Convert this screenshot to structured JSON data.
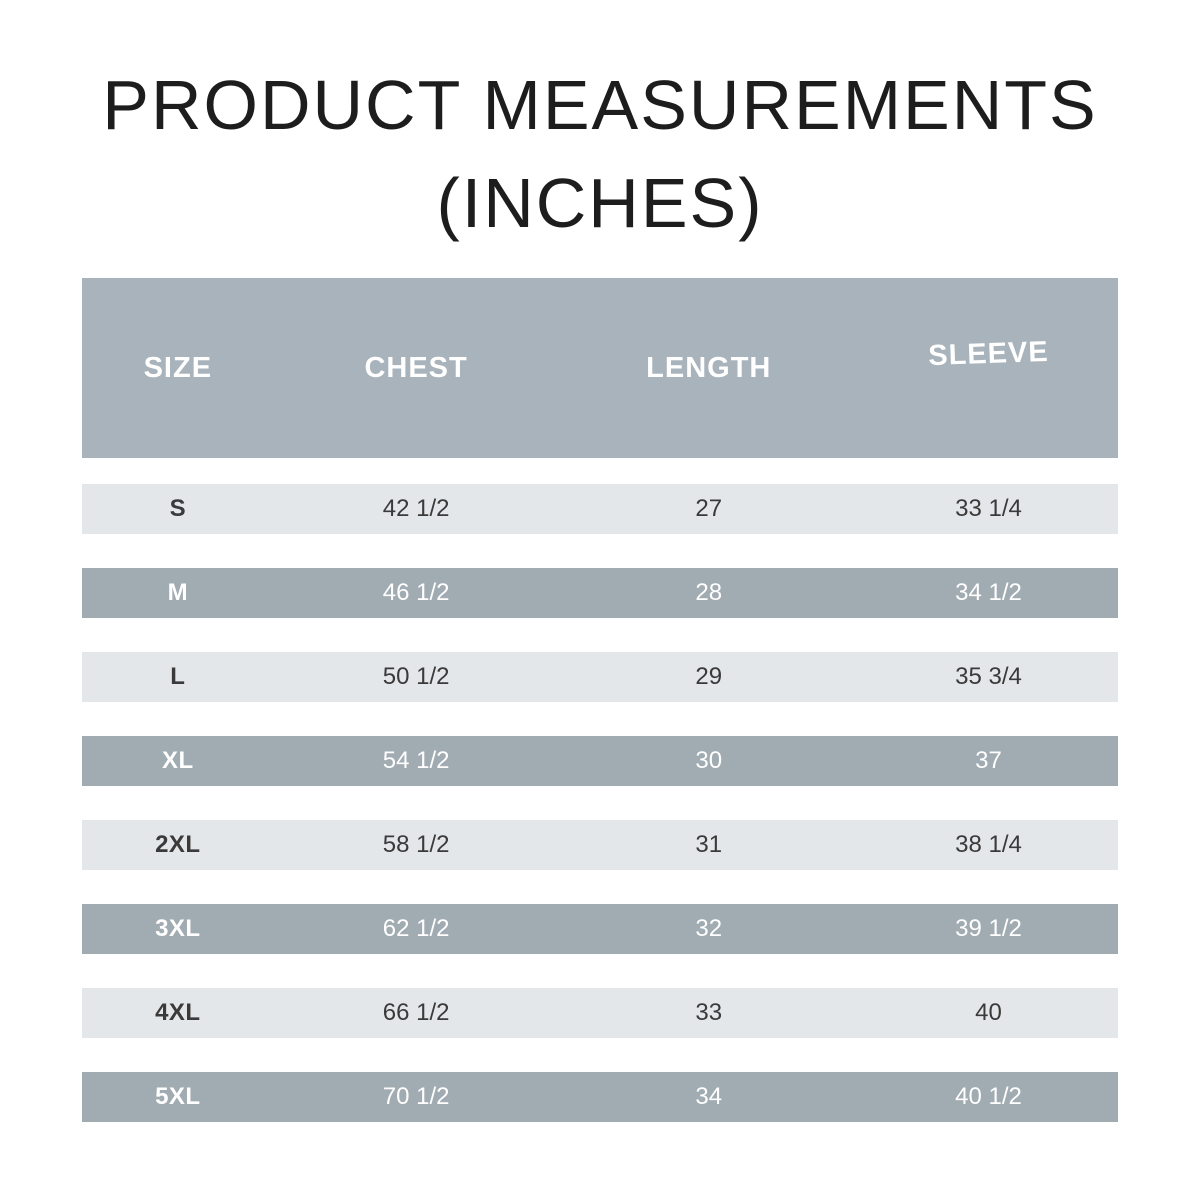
{
  "title": {
    "line1": "PRODUCT MEASUREMENTS",
    "line2": "(INCHES)"
  },
  "colors": {
    "header_bg": "#a8b3bb",
    "dark_row_bg": "#a1abb2",
    "light_row_bg": "#e4e7e9",
    "header_text": "#ffffff",
    "dark_text": "#3a3a3a",
    "title_text": "#1d1d1d",
    "page_bg": "#ffffff"
  },
  "chart_data": {
    "type": "table",
    "title": "PRODUCT MEASUREMENTS (INCHES)",
    "columns": [
      "SIZE",
      "CHEST",
      "LENGTH",
      "SLEEVE"
    ],
    "rows": [
      [
        "S",
        "42 1/2",
        "27",
        "33 1/4"
      ],
      [
        "M",
        "46 1/2",
        "28",
        "34 1/2"
      ],
      [
        "L",
        "50 1/2",
        "29",
        "35 3/4"
      ],
      [
        "XL",
        "54 1/2",
        "30",
        "37"
      ],
      [
        "2XL",
        "58 1/2",
        "31",
        "38 1/4"
      ],
      [
        "3XL",
        "62 1/2",
        "32",
        "39 1/2"
      ],
      [
        "4XL",
        "66 1/2",
        "33",
        "40"
      ],
      [
        "5XL",
        "70 1/2",
        "34",
        "40 1/2"
      ]
    ],
    "layout": {
      "row_striping": "alternating light/dark starting light",
      "units": "inches"
    }
  }
}
